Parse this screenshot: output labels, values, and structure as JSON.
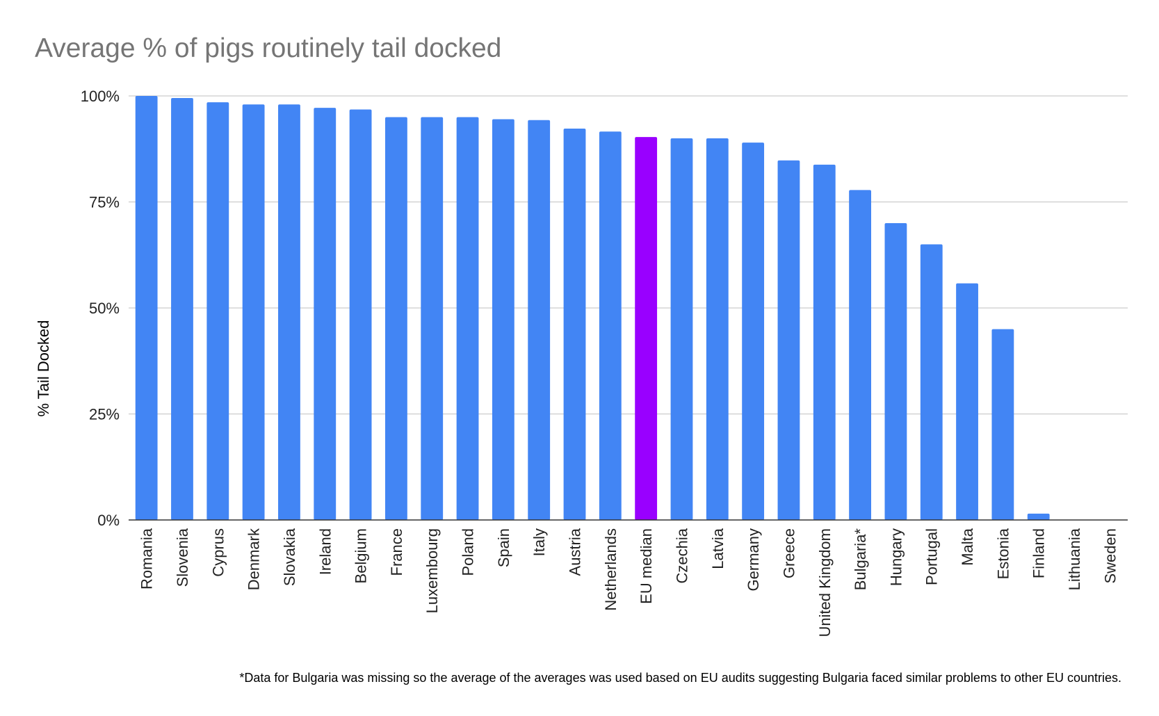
{
  "chart_data": {
    "type": "bar",
    "title": "Average % of pigs routinely tail docked",
    "ylabel": "% Tail Docked",
    "xlabel": "",
    "ylim": [
      0,
      1
    ],
    "yticks": [
      "0%",
      "25%",
      "50%",
      "75%",
      "100%"
    ],
    "ytick_values": [
      0,
      0.25,
      0.5,
      0.75,
      1.0
    ],
    "grid": true,
    "legend": "none",
    "categories": [
      "Romania",
      "Slovenia",
      "Cyprus",
      "Denmark",
      "Slovakia",
      "Ireland",
      "Belgium",
      "France",
      "Luxembourg",
      "Poland",
      "Spain",
      "Italy",
      "Austria",
      "Netherlands",
      "EU median",
      "Czechia",
      "Latvia",
      "Germany",
      "Greece",
      "United Kingdom",
      "Bulgaria*",
      "Hungary",
      "Portugal",
      "Malta",
      "Estonia",
      "Finland",
      "Lithuania",
      "Sweden"
    ],
    "values": [
      1.0,
      0.995,
      0.985,
      0.98,
      0.98,
      0.972,
      0.968,
      0.95,
      0.95,
      0.95,
      0.945,
      0.943,
      0.923,
      0.916,
      0.903,
      0.9,
      0.9,
      0.89,
      0.848,
      0.838,
      0.778,
      0.7,
      0.65,
      0.558,
      0.45,
      0.015,
      0,
      0
    ],
    "bar_color": "#4285f4",
    "highlight_category": "EU median",
    "highlight_color": "#9900ff",
    "footnote": "*Data for Bulgaria was missing so the average of the averages was used based on EU audits suggesting Bulgaria faced similar problems to other EU countries."
  }
}
